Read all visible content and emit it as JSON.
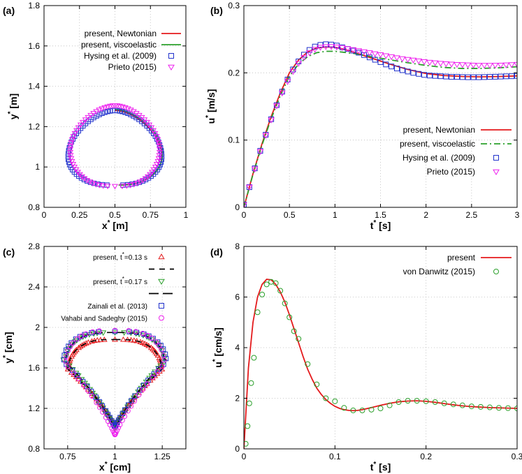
{
  "colors": {
    "red": "#e41a1c",
    "green": "#2ca02c",
    "blue": "#2233cc",
    "magenta": "#ee22ee",
    "black": "#000000",
    "grid": "#bbbbbb",
    "purple": "#8a1a8a"
  },
  "chart_data": [
    {
      "id": "a",
      "type": "scatter",
      "tag": "(a)",
      "xlabel": {
        "base": "x",
        "sup": "*",
        "unit": " [m]"
      },
      "ylabel": {
        "base": "y",
        "sup": "*",
        "unit": " [m]"
      },
      "xlim": [
        0,
        1
      ],
      "ylim": [
        0.8,
        1.8
      ],
      "xticks": [
        0,
        0.25,
        0.5,
        0.75,
        1
      ],
      "xtick_labels": [
        "0",
        "0.25",
        "0.5",
        "0.75",
        "1"
      ],
      "yticks": [
        0.8,
        1,
        1.2,
        1.4,
        1.6,
        1.8
      ],
      "ytick_labels": [
        "0.8",
        "1",
        "1.2",
        "1.4",
        "1.6",
        "1.8"
      ],
      "legend": [
        {
          "label": "present, Newtonian",
          "style": "line",
          "color": "red"
        },
        {
          "label": "present, viscoelastic",
          "style": "line",
          "color": "green"
        },
        {
          "label": "Hysing et al. (2009)",
          "style": "square",
          "color": "blue"
        },
        {
          "label": "Prieto (2015)",
          "style": "tri-down",
          "color": "magenta"
        }
      ],
      "shapes": [
        {
          "name": "present-newtonian-bubble",
          "color": "red",
          "cx": 0.5,
          "yb": 0.91,
          "yt": 1.28,
          "wmax": 0.33,
          "ymax": 1.05,
          "style": "line"
        },
        {
          "name": "present-viscoelastic-bubble",
          "color": "green",
          "cx": 0.5,
          "yb": 0.91,
          "yt": 1.285,
          "wmax": 0.335,
          "ymax": 1.06,
          "style": "line"
        },
        {
          "name": "hysing-bubble",
          "color": "blue",
          "cx": 0.5,
          "yb": 0.91,
          "yt": 1.28,
          "wmax": 0.33,
          "ymax": 1.05,
          "style": "square",
          "n": 80
        },
        {
          "name": "prieto-bubble",
          "color": "magenta",
          "cx": 0.5,
          "yb": 0.905,
          "yt": 1.305,
          "wmax": 0.315,
          "ymax": 1.08,
          "style": "tri-down",
          "n": 80
        }
      ]
    },
    {
      "id": "b",
      "type": "line",
      "tag": "(b)",
      "xlabel": {
        "base": "t",
        "sup": "*",
        "unit": " [s]"
      },
      "ylabel": {
        "base": "u",
        "sup": "*",
        "unit": " [m/s]"
      },
      "xlim": [
        0,
        3
      ],
      "ylim": [
        0,
        0.3
      ],
      "xticks": [
        0,
        0.5,
        1,
        1.5,
        2,
        2.5,
        3
      ],
      "xtick_labels": [
        "0",
        "0.5",
        "1",
        "1.5",
        "2",
        "2.5",
        "3"
      ],
      "yticks": [
        0,
        0.1,
        0.2,
        0.3
      ],
      "ytick_labels": [
        "0",
        "0.1",
        "0.2",
        "0.3"
      ],
      "legend": [
        {
          "label": "present, Newtonian",
          "style": "line",
          "color": "red"
        },
        {
          "label": "present, viscoelastic",
          "style": "dashdot",
          "color": "green"
        },
        {
          "label": "Hysing et al. (2009)",
          "style": "square",
          "color": "blue"
        },
        {
          "label": "Prieto (2015)",
          "style": "tri-down",
          "color": "magenta"
        }
      ],
      "series": [
        {
          "name": "present, Newtonian",
          "color": "red",
          "style": "line",
          "x": [
            0,
            0.1,
            0.2,
            0.3,
            0.4,
            0.5,
            0.6,
            0.7,
            0.8,
            0.9,
            1.0,
            1.1,
            1.2,
            1.4,
            1.6,
            1.8,
            2.0,
            2.2,
            2.4,
            2.6,
            2.8,
            3.0
          ],
          "y": [
            0,
            0.05,
            0.095,
            0.135,
            0.17,
            0.2,
            0.219,
            0.231,
            0.237,
            0.2385,
            0.238,
            0.235,
            0.231,
            0.222,
            0.213,
            0.205,
            0.199,
            0.196,
            0.1945,
            0.194,
            0.1945,
            0.1955
          ]
        },
        {
          "name": "present, viscoelastic",
          "color": "green",
          "style": "dashdot",
          "x": [
            0,
            0.1,
            0.2,
            0.3,
            0.4,
            0.5,
            0.6,
            0.7,
            0.8,
            0.9,
            1.0,
            1.1,
            1.2,
            1.4,
            1.6,
            1.8,
            2.0,
            2.2,
            2.4,
            2.6,
            2.8,
            3.0
          ],
          "y": [
            0,
            0.049,
            0.093,
            0.132,
            0.166,
            0.195,
            0.213,
            0.224,
            0.23,
            0.232,
            0.232,
            0.2305,
            0.229,
            0.224,
            0.2195,
            0.215,
            0.211,
            0.208,
            0.2065,
            0.2065,
            0.2075,
            0.209
          ]
        },
        {
          "name": "Hysing et al. (2009)",
          "color": "blue",
          "style": "square",
          "x": [
            0,
            0.06,
            0.12,
            0.18,
            0.24,
            0.3,
            0.36,
            0.42,
            0.48,
            0.54,
            0.6,
            0.66,
            0.72,
            0.78,
            0.84,
            0.9,
            0.96,
            1.02,
            1.08,
            1.14,
            1.2,
            1.26,
            1.32,
            1.38,
            1.44,
            1.5,
            1.56,
            1.62,
            1.68,
            1.74,
            1.8,
            1.86,
            1.92,
            1.98,
            2.04,
            2.1,
            2.16,
            2.22,
            2.28,
            2.34,
            2.4,
            2.46,
            2.52,
            2.58,
            2.64,
            2.7,
            2.76,
            2.82,
            2.88,
            2.94,
            3.0
          ],
          "y": [
            0.004,
            0.03,
            0.058,
            0.084,
            0.108,
            0.131,
            0.152,
            0.172,
            0.19,
            0.205,
            0.217,
            0.227,
            0.234,
            0.239,
            0.2415,
            0.2425,
            0.242,
            0.2405,
            0.238,
            0.2355,
            0.233,
            0.23,
            0.2265,
            0.223,
            0.2195,
            0.216,
            0.2125,
            0.2095,
            0.2065,
            0.204,
            0.202,
            0.2,
            0.1985,
            0.197,
            0.196,
            0.1955,
            0.195,
            0.1945,
            0.194,
            0.194,
            0.1937,
            0.1935,
            0.1935,
            0.1935,
            0.1937,
            0.194,
            0.1942,
            0.1945,
            0.1948,
            0.195,
            0.1955
          ]
        },
        {
          "name": "Prieto (2015)",
          "color": "magenta",
          "style": "tri-down",
          "x": [
            0,
            0.06,
            0.12,
            0.18,
            0.24,
            0.3,
            0.36,
            0.42,
            0.48,
            0.54,
            0.6,
            0.66,
            0.72,
            0.78,
            0.84,
            0.9,
            0.96,
            1.02,
            1.08,
            1.14,
            1.2,
            1.26,
            1.32,
            1.38,
            1.44,
            1.5,
            1.56,
            1.62,
            1.68,
            1.74,
            1.8,
            1.86,
            1.92,
            1.98,
            2.04,
            2.1,
            2.16,
            2.22,
            2.28,
            2.34,
            2.4,
            2.46,
            2.52,
            2.58,
            2.64,
            2.7,
            2.76,
            2.82,
            2.88,
            2.94,
            3.0
          ],
          "y": [
            0.004,
            0.03,
            0.057,
            0.083,
            0.107,
            0.13,
            0.151,
            0.17,
            0.187,
            0.202,
            0.214,
            0.223,
            0.23,
            0.235,
            0.238,
            0.239,
            0.2392,
            0.2385,
            0.2375,
            0.236,
            0.2345,
            0.233,
            0.2315,
            0.23,
            0.2285,
            0.227,
            0.2255,
            0.224,
            0.2225,
            0.221,
            0.22,
            0.219,
            0.2178,
            0.2167,
            0.2157,
            0.215,
            0.2142,
            0.2135,
            0.213,
            0.2125,
            0.2122,
            0.2118,
            0.2115,
            0.2112,
            0.2112,
            0.2112,
            0.2113,
            0.2115,
            0.2118,
            0.2122,
            0.2126
          ]
        }
      ]
    },
    {
      "id": "c",
      "type": "scatter",
      "tag": "(c)",
      "xlabel": {
        "base": "x",
        "sup": "*",
        "unit": " [cm]"
      },
      "ylabel": {
        "base": "y",
        "sup": "*",
        "unit": " [cm]"
      },
      "xlim": [
        0.625,
        1.375
      ],
      "ylim": [
        0.8,
        2.8
      ],
      "xticks": [
        0.75,
        1,
        1.25
      ],
      "xtick_labels": [
        "0.75",
        "1",
        "1.25"
      ],
      "yticks": [
        0.8,
        1.2,
        1.6,
        2,
        2.4,
        2.8
      ],
      "ytick_labels": [
        "0.8",
        "1.2",
        "1.6",
        "2",
        "2.4",
        "2.8"
      ],
      "legend": [
        {
          "label": "present, t",
          "sup": "*",
          "suffix": "=0.13 s",
          "style": "tri-up",
          "color": "red"
        },
        {
          "label": "",
          "style": "dash",
          "color": "black"
        },
        {
          "label": "present, t",
          "sup": "*",
          "suffix": "=0.17 s",
          "style": "tri-down",
          "color": "green"
        },
        {
          "label": "",
          "style": "longdash",
          "color": "black"
        },
        {
          "label": "Zainali et al. (2013)",
          "style": "square",
          "color": "blue"
        },
        {
          "label": "Vahabi and Sadeghy (2015)",
          "style": "circle",
          "color": "magenta"
        }
      ],
      "shapes": [
        {
          "name": "present-t013-bubble",
          "color": "red",
          "style": "tri-up",
          "yt": 1.88,
          "yb": 1.03,
          "ws": 0.245,
          "ys": 1.6,
          "n": 110
        },
        {
          "name": "present-t013-line",
          "color": "black",
          "style": "dash",
          "yt": 1.88,
          "yb": 1.03,
          "ws": 0.245,
          "ys": 1.6
        },
        {
          "name": "present-t017-bubble",
          "color": "green",
          "style": "tri-down",
          "yt": 1.95,
          "yb": 1.0,
          "ws": 0.26,
          "ys": 1.68,
          "n": 90
        },
        {
          "name": "present-t017-line",
          "color": "black",
          "style": "longdash",
          "yt": 1.95,
          "yb": 1.0,
          "ws": 0.26,
          "ys": 1.68
        },
        {
          "name": "zainali-bubble",
          "color": "blue",
          "style": "square",
          "yt": 1.96,
          "yb": 1.02,
          "ws": 0.27,
          "ys": 1.68,
          "n": 55
        },
        {
          "name": "vahabi-bubble",
          "color": "magenta",
          "style": "circle",
          "yt": 1.97,
          "yb": 0.94,
          "ws": 0.26,
          "ys": 1.66,
          "n": 55
        }
      ]
    },
    {
      "id": "d",
      "type": "line",
      "tag": "(d)",
      "xlabel": {
        "base": "t",
        "sup": "*",
        "unit": " [s]"
      },
      "ylabel": {
        "base": "u",
        "sup": "*",
        "unit": " [cm/s]"
      },
      "xlim": [
        0,
        0.3
      ],
      "ylim": [
        0,
        8
      ],
      "xticks": [
        0,
        0.1,
        0.2,
        0.3
      ],
      "xtick_labels": [
        "0",
        "0.1",
        "0.2",
        "0.3"
      ],
      "yticks": [
        0,
        2,
        4,
        6,
        8
      ],
      "ytick_labels": [
        "0",
        "2",
        "4",
        "6",
        "8"
      ],
      "legend": [
        {
          "label": "present",
          "style": "line",
          "color": "red"
        },
        {
          "label": "von Danwitz (2015)",
          "style": "circle",
          "color": "green"
        }
      ],
      "series": [
        {
          "name": "present",
          "color": "red",
          "style": "line",
          "x": [
            0,
            0.005,
            0.01,
            0.015,
            0.02,
            0.025,
            0.03,
            0.035,
            0.04,
            0.045,
            0.05,
            0.055,
            0.06,
            0.065,
            0.07,
            0.075,
            0.08,
            0.085,
            0.09,
            0.095,
            0.1,
            0.105,
            0.11,
            0.115,
            0.12,
            0.125,
            0.13,
            0.14,
            0.15,
            0.16,
            0.17,
            0.18,
            0.19,
            0.2,
            0.21,
            0.22,
            0.23,
            0.24,
            0.25,
            0.26,
            0.27,
            0.28,
            0.29,
            0.3
          ],
          "y": [
            0,
            3.2,
            5.0,
            6.0,
            6.5,
            6.7,
            6.68,
            6.5,
            6.2,
            5.8,
            5.3,
            4.75,
            4.2,
            3.65,
            3.15,
            2.75,
            2.4,
            2.15,
            1.95,
            1.8,
            1.68,
            1.6,
            1.55,
            1.52,
            1.51,
            1.52,
            1.55,
            1.63,
            1.72,
            1.8,
            1.86,
            1.89,
            1.9,
            1.88,
            1.84,
            1.79,
            1.74,
            1.7,
            1.67,
            1.65,
            1.63,
            1.62,
            1.61,
            1.6
          ]
        },
        {
          "name": "von Danwitz (2015)",
          "color": "green",
          "style": "circle",
          "x": [
            0.002,
            0.004,
            0.006,
            0.008,
            0.011,
            0.015,
            0.02,
            0.025,
            0.03,
            0.035,
            0.04,
            0.045,
            0.05,
            0.055,
            0.06,
            0.07,
            0.08,
            0.09,
            0.1,
            0.11,
            0.12,
            0.13,
            0.14,
            0.15,
            0.16,
            0.17,
            0.18,
            0.19,
            0.2,
            0.21,
            0.22,
            0.23,
            0.24,
            0.25,
            0.26,
            0.27,
            0.28,
            0.29,
            0.3
          ],
          "y": [
            0.2,
            0.9,
            1.8,
            2.6,
            3.6,
            5.4,
            6.1,
            6.5,
            6.6,
            6.55,
            6.25,
            5.75,
            5.2,
            4.65,
            4.35,
            3.35,
            2.55,
            2.0,
            1.88,
            1.62,
            1.52,
            1.52,
            1.55,
            1.6,
            1.72,
            1.85,
            1.9,
            1.9,
            1.88,
            1.85,
            1.8,
            1.76,
            1.72,
            1.68,
            1.66,
            1.64,
            1.62,
            1.61,
            1.6
          ]
        }
      ]
    }
  ]
}
